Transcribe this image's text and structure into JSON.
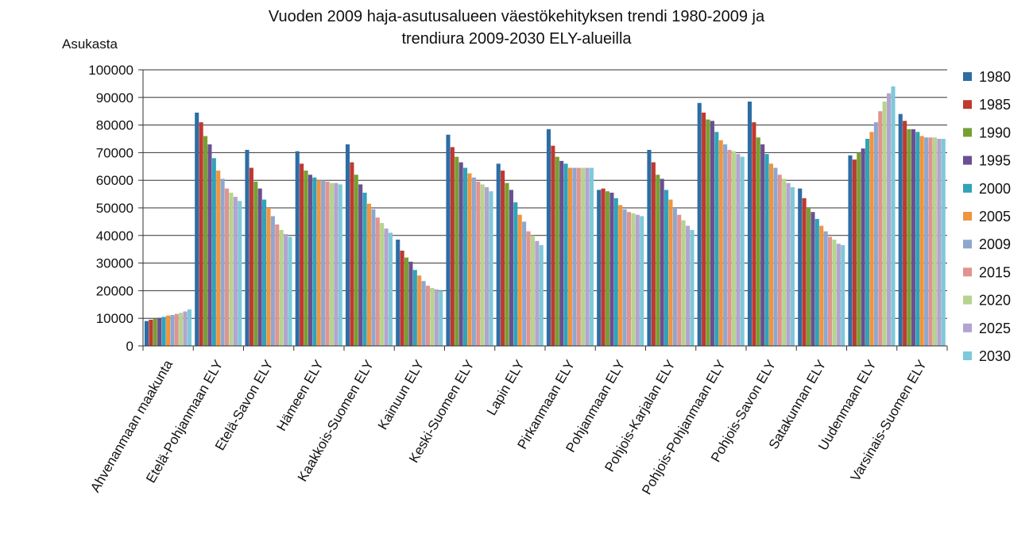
{
  "chart_data": {
    "type": "bar",
    "title": [
      "Vuoden  2009 haja-asutusalueen väestökehityksen trendi 1980-2009 ja",
      "trendiura 2009-2030 ELY-alueilla"
    ],
    "ylabel": "Asukasta",
    "xlabel": "",
    "ylim": [
      0,
      100000
    ],
    "yticks": [
      0,
      10000,
      20000,
      30000,
      40000,
      50000,
      60000,
      70000,
      80000,
      90000,
      100000
    ],
    "grid": true,
    "legend": "right",
    "categories": [
      "Ahvenanmaan maakunta",
      "Etelä-Pohjanmaan ELY",
      "Etelä-Savon ELY",
      "Hämeen ELY",
      "Kaakkois-Suomen ELY",
      "Kainuun ELY",
      "Keski-Suomen ELY",
      "Lapin ELY",
      "Pirkanmaan ELY",
      "Pohjanmaan ELY",
      "Pohjois-Karjalan ELY",
      "Pohjois-Pohjanmaan ELY",
      "Pohjois-Savon ELY",
      "Satakunnan ELY",
      "Uudenmaan ELY",
      "Varsinais-Suomen ELY"
    ],
    "series": [
      {
        "name": "1980",
        "color": "#2e6da4",
        "values": [
          9000,
          84500,
          71000,
          70500,
          73000,
          38500,
          76500,
          66000,
          78500,
          56500,
          71000,
          88000,
          88500,
          57000,
          69000,
          84000
        ]
      },
      {
        "name": "1985",
        "color": "#c0392f",
        "values": [
          9500,
          81000,
          64500,
          66000,
          66500,
          34500,
          72000,
          63500,
          72500,
          57000,
          66500,
          84500,
          81000,
          53500,
          67500,
          81500
        ]
      },
      {
        "name": "1990",
        "color": "#77a033",
        "values": [
          9800,
          76000,
          59500,
          63500,
          62000,
          32000,
          68500,
          59000,
          68500,
          56000,
          62000,
          82000,
          75500,
          50000,
          70000,
          78500
        ]
      },
      {
        "name": "1995",
        "color": "#6a4f92",
        "values": [
          10200,
          73000,
          57000,
          62000,
          58500,
          30500,
          66500,
          56500,
          67000,
          55500,
          60500,
          81500,
          73000,
          48500,
          71500,
          78500
        ]
      },
      {
        "name": "2000",
        "color": "#2fa3b8",
        "values": [
          10500,
          68000,
          53000,
          61000,
          55500,
          27500,
          64500,
          52000,
          66000,
          53500,
          56500,
          77500,
          69500,
          46000,
          75000,
          77500
        ]
      },
      {
        "name": "2005",
        "color": "#f0943d",
        "values": [
          11000,
          63500,
          50000,
          60000,
          51500,
          25500,
          62500,
          47500,
          64500,
          51000,
          53000,
          74500,
          66000,
          43500,
          77500,
          76000
        ]
      },
      {
        "name": "2009",
        "color": "#8ea7d0",
        "values": [
          11200,
          60500,
          47000,
          60000,
          49500,
          23500,
          61000,
          45000,
          64500,
          49500,
          50000,
          73000,
          64500,
          41500,
          81000,
          75500
        ]
      },
      {
        "name": "2015",
        "color": "#e0948f",
        "values": [
          11600,
          57000,
          44000,
          59500,
          46500,
          21800,
          59500,
          41500,
          64500,
          48500,
          47500,
          71000,
          62000,
          39500,
          85000,
          75500
        ]
      },
      {
        "name": "2020",
        "color": "#b5d48e",
        "values": [
          12000,
          55500,
          42000,
          59000,
          44500,
          21000,
          58500,
          40000,
          64500,
          48000,
          45500,
          70500,
          60500,
          38500,
          88500,
          75500
        ]
      },
      {
        "name": "2025",
        "color": "#b3a4cf",
        "values": [
          12500,
          54000,
          40500,
          59000,
          42500,
          20500,
          57500,
          38000,
          64500,
          47500,
          43500,
          69500,
          59000,
          37000,
          91500,
          75000
        ]
      },
      {
        "name": "2030",
        "color": "#7ec9d9",
        "values": [
          13200,
          52500,
          39500,
          58500,
          41000,
          20000,
          56000,
          36500,
          64500,
          47000,
          42000,
          68500,
          57500,
          36500,
          94000,
          75000
        ]
      }
    ]
  }
}
